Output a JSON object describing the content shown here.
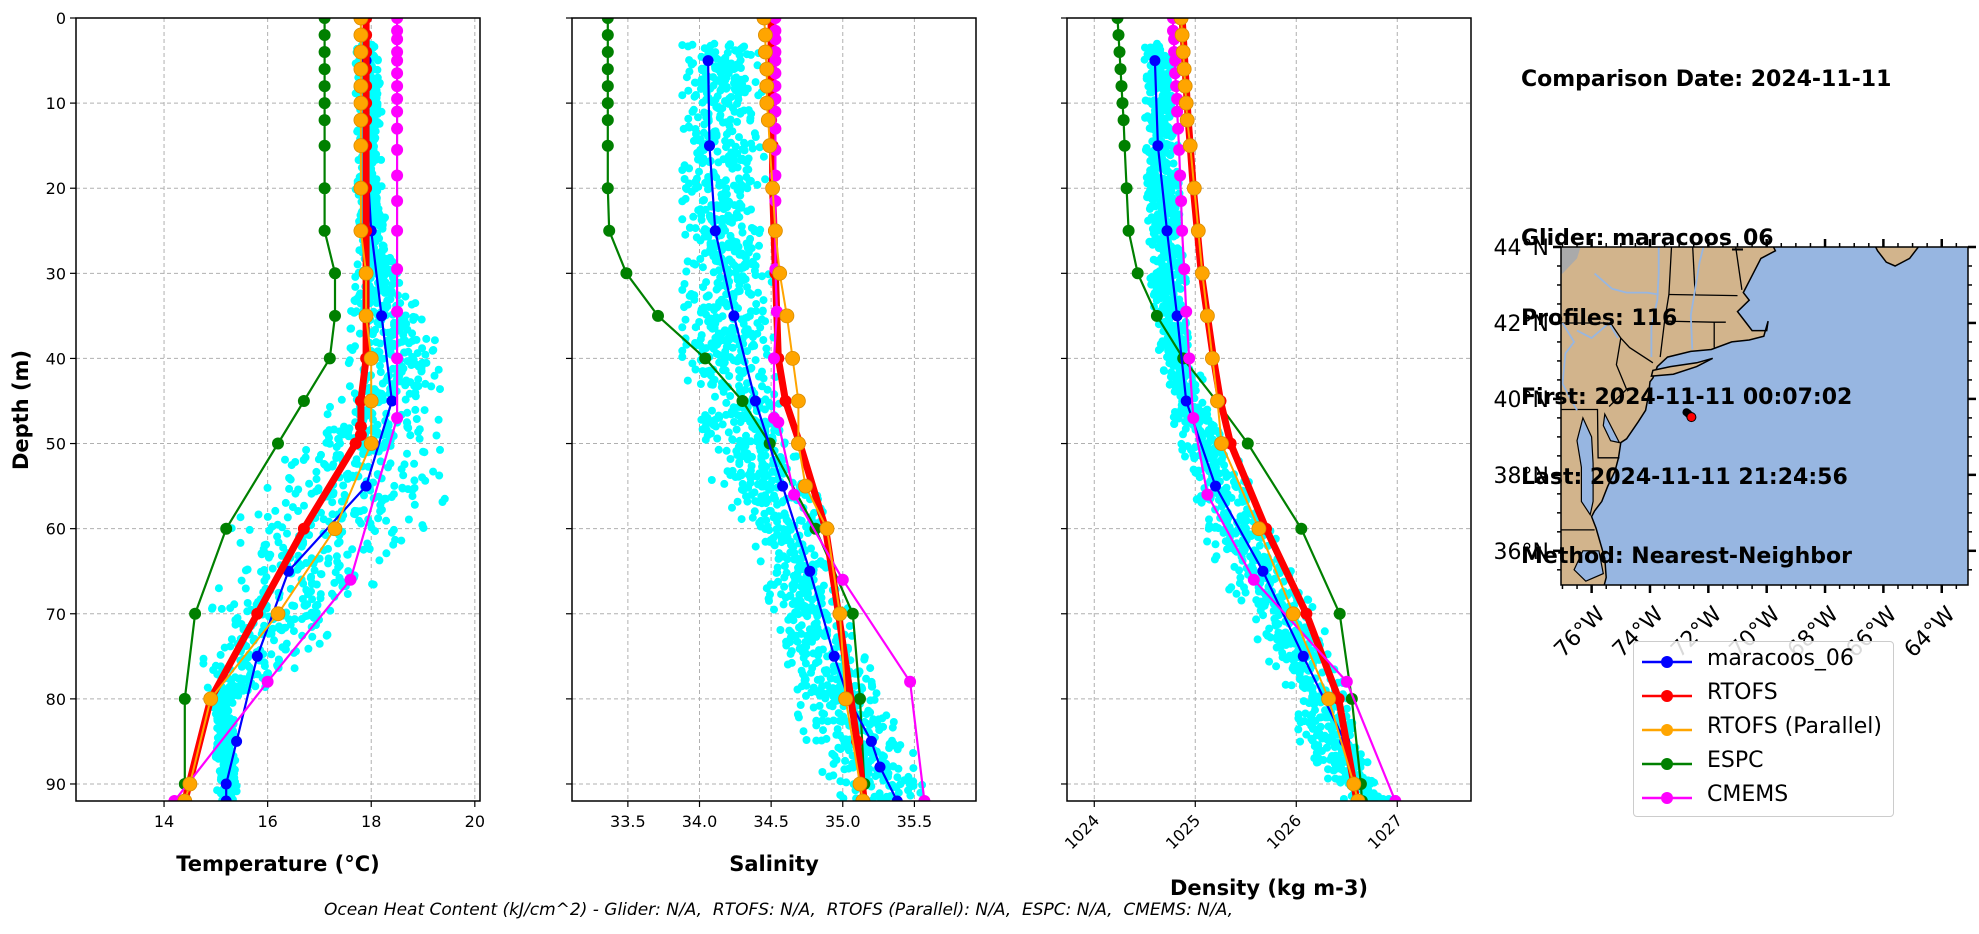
{
  "info": {
    "lines": [
      "Comparison Date: 2024-11-11",
      "",
      "Glider: maracoos_06",
      "Profiles: 116",
      "First: 2024-11-11 00:07:02",
      "Last: 2024-11-11 21:24:56",
      "Method: Nearest-Neighbor"
    ]
  },
  "footer": "Ocean Heat Content (kJ/cm^2) - Glider: N/A,  RTOFS: N/A,  RTOFS (Parallel): N/A,  ESPC: N/A,  CMEMS: N/A,",
  "legend": [
    {
      "name": "maracoos_06",
      "color": "#0000ff"
    },
    {
      "name": "RTOFS",
      "color": "#ff0000"
    },
    {
      "name": "RTOFS (Parallel)",
      "color": "#ffa500"
    },
    {
      "name": "ESPC",
      "color": "#008000"
    },
    {
      "name": "CMEMS",
      "color": "#ff00ff"
    }
  ],
  "colors": {
    "glider_scatter": "#00ffff",
    "land": "#d2b48c",
    "ocean": "#97b6e1",
    "rivers": "#97b6e1",
    "grid": "#b0b0b0"
  },
  "chart_data": [
    {
      "type": "line",
      "title": "",
      "xlabel": "Temperature (°C)",
      "ylabel": "Depth (m)",
      "xlim": [
        12.3,
        20.1
      ],
      "ylim": [
        92,
        0
      ],
      "xticks": [
        14,
        16,
        18,
        20
      ],
      "xtick_labels": [
        "14",
        "16",
        "18",
        "20"
      ],
      "yticks": [
        0,
        10,
        20,
        30,
        40,
        50,
        60,
        70,
        80,
        90
      ],
      "ytick_labels": [
        "0",
        "10",
        "20",
        "30",
        "40",
        "50",
        "60",
        "70",
        "80",
        "90"
      ],
      "grid": true,
      "scatter_envelope": {
        "name": "maracoos_06 profiles",
        "depth": [
          3,
          10,
          20,
          30,
          35,
          40,
          45,
          50,
          55,
          60,
          65,
          70,
          75,
          78,
          80,
          85,
          90,
          92
        ],
        "min": [
          17.7,
          17.7,
          17.7,
          17.7,
          17.6,
          17.6,
          17.3,
          16.6,
          15.9,
          15.3,
          14.9,
          14.7,
          14.7,
          14.8,
          14.9,
          15.0,
          15.0,
          15.0
        ],
        "max": [
          18.1,
          18.2,
          18.2,
          18.5,
          19.0,
          19.4,
          19.3,
          19.3,
          19.6,
          19.0,
          18.3,
          17.5,
          16.8,
          16.2,
          15.4,
          15.4,
          15.4,
          15.4
        ]
      },
      "series": [
        {
          "name": "maracoos_06",
          "x": [
            17.9,
            17.9,
            18.0,
            18.2,
            18.4,
            17.9,
            16.4,
            15.8,
            15.4,
            15.2,
            15.2
          ],
          "depth": [
            5,
            15,
            25,
            35,
            45,
            55,
            65,
            75,
            85,
            90,
            92
          ]
        },
        {
          "name": "RTOFS",
          "x": [
            17.9,
            17.9,
            17.9,
            17.9,
            17.9,
            17.9,
            17.9,
            17.9,
            17.9,
            17.9,
            17.9,
            17.9,
            17.9,
            17.8,
            17.8,
            17.8,
            17.7,
            16.7,
            15.8,
            14.9,
            14.4
          ],
          "depth": [
            0,
            2,
            4,
            6,
            8,
            10,
            12,
            15,
            20,
            25,
            30,
            35,
            40,
            45,
            48,
            49,
            50,
            60,
            70,
            80,
            92
          ]
        },
        {
          "name": "RTOFS (Parallel)",
          "x": [
            17.8,
            17.8,
            17.8,
            17.8,
            17.8,
            17.8,
            17.8,
            17.8,
            17.8,
            17.8,
            17.9,
            17.9,
            18.0,
            18.0,
            18.0,
            17.3,
            16.2,
            14.9,
            14.5,
            14.4
          ],
          "depth": [
            0,
            2,
            4,
            6,
            8,
            10,
            12,
            15,
            20,
            25,
            30,
            35,
            40,
            45,
            50,
            60,
            70,
            80,
            90,
            92
          ]
        },
        {
          "name": "ESPC",
          "x": [
            17.1,
            17.1,
            17.1,
            17.1,
            17.1,
            17.1,
            17.1,
            17.1,
            17.1,
            17.1,
            17.3,
            17.3,
            17.2,
            16.7,
            16.2,
            15.2,
            14.6,
            14.4,
            14.4,
            14.4
          ],
          "depth": [
            0,
            2,
            4,
            6,
            8,
            10,
            12,
            15,
            20,
            25,
            30,
            35,
            40,
            45,
            50,
            60,
            70,
            80,
            90,
            92
          ]
        },
        {
          "name": "CMEMS",
          "x": [
            18.5,
            18.5,
            18.5,
            18.5,
            18.5,
            18.5,
            18.5,
            18.5,
            18.5,
            18.5,
            18.5,
            18.5,
            18.5,
            18.5,
            18.5,
            18.5,
            18.5,
            18.5,
            17.6,
            16.0,
            14.2
          ],
          "depth": [
            0,
            1.5,
            2.5,
            4,
            5,
            6.5,
            8,
            9.5,
            11,
            13,
            15.5,
            18.5,
            21.5,
            25,
            29.5,
            34.5,
            40,
            47,
            66,
            78,
            92
          ]
        }
      ]
    },
    {
      "type": "line",
      "title": "",
      "xlabel": "Salinity",
      "ylabel": "",
      "xlim": [
        33.11,
        35.93
      ],
      "ylim": [
        92,
        0
      ],
      "xticks": [
        33.5,
        34.0,
        34.5,
        35.0,
        35.5
      ],
      "xtick_labels": [
        "33.5",
        "34.0",
        "34.5",
        "35.0",
        "35.5"
      ],
      "yticks": [
        0,
        10,
        20,
        30,
        40,
        50,
        60,
        70,
        80,
        90
      ],
      "grid": true,
      "scatter_envelope": {
        "name": "maracoos_06 profiles",
        "depth": [
          3,
          10,
          20,
          30,
          40,
          45,
          50,
          55,
          60,
          65,
          70,
          75,
          80,
          85,
          90,
          92
        ],
        "min": [
          33.88,
          33.88,
          33.88,
          33.88,
          33.88,
          33.9,
          34.0,
          34.1,
          34.35,
          34.45,
          34.5,
          34.6,
          34.65,
          34.75,
          34.9,
          35.0
        ],
        "max": [
          34.44,
          34.44,
          34.46,
          34.5,
          34.54,
          34.6,
          34.7,
          34.8,
          34.9,
          34.95,
          35.05,
          35.15,
          35.3,
          35.45,
          35.6,
          35.7
        ]
      },
      "series": [
        {
          "name": "maracoos_06",
          "x": [
            34.06,
            34.07,
            34.11,
            34.24,
            34.39,
            34.58,
            34.77,
            34.94,
            35.04,
            35.2,
            35.26,
            35.38
          ],
          "depth": [
            5,
            15,
            25,
            35,
            45,
            55,
            65,
            75,
            80,
            85,
            88,
            92
          ]
        },
        {
          "name": "RTOFS",
          "x": [
            34.5,
            34.5,
            34.5,
            34.5,
            34.5,
            34.5,
            34.5,
            34.51,
            34.51,
            34.52,
            34.53,
            34.55,
            34.6,
            34.7,
            34.88,
            34.97,
            35.1,
            35.15
          ],
          "depth": [
            0,
            2,
            4,
            6,
            8,
            10,
            12,
            15,
            20,
            25,
            30,
            40,
            45,
            50,
            60,
            70,
            85,
            92
          ]
        },
        {
          "name": "RTOFS (Parallel)",
          "x": [
            34.45,
            34.46,
            34.46,
            34.47,
            34.47,
            34.47,
            34.48,
            34.49,
            34.51,
            34.53,
            34.56,
            34.61,
            34.65,
            34.69,
            34.69,
            34.74,
            34.89,
            34.98,
            35.02,
            35.12,
            35.14
          ],
          "depth": [
            0,
            2,
            4,
            6,
            8,
            10,
            12,
            15,
            20,
            25,
            30,
            35,
            40,
            45,
            50,
            55,
            60,
            70,
            80,
            90,
            92
          ]
        },
        {
          "name": "ESPC",
          "x": [
            33.36,
            33.36,
            33.36,
            33.36,
            33.36,
            33.36,
            33.36,
            33.36,
            33.36,
            33.37,
            33.49,
            33.71,
            34.04,
            34.3,
            34.49,
            34.81,
            35.07,
            35.12,
            35.15
          ],
          "depth": [
            0,
            2,
            4,
            6,
            8,
            10,
            12,
            15,
            20,
            25,
            30,
            35,
            40,
            45,
            50,
            60,
            70,
            80,
            90
          ]
        },
        {
          "name": "CMEMS",
          "x": [
            34.53,
            34.53,
            34.53,
            34.53,
            34.53,
            34.53,
            34.53,
            34.53,
            34.53,
            34.53,
            34.53,
            34.53,
            34.53,
            34.53,
            34.53,
            34.54,
            34.52,
            34.52,
            34.55,
            34.66,
            35.0,
            35.47,
            35.57
          ],
          "depth": [
            0,
            1.5,
            2.5,
            4,
            5,
            6.5,
            8,
            9.5,
            11,
            13,
            15.5,
            18.5,
            21.5,
            25,
            29.5,
            34.5,
            40,
            47,
            47.5,
            56,
            66,
            78,
            92
          ]
        }
      ]
    },
    {
      "type": "line",
      "title": "",
      "xlabel": "Density (kg m-3)",
      "ylabel": "",
      "xlim": [
        1023.73,
        1027.73
      ],
      "ylim": [
        92,
        0
      ],
      "xticks": [
        1024,
        1025,
        1026,
        1027
      ],
      "xtick_labels": [
        "1024",
        "1025",
        "1026",
        "1027"
      ],
      "yticks": [
        0,
        10,
        20,
        30,
        40,
        50,
        60,
        70,
        80,
        90
      ],
      "grid": true,
      "scatter_envelope": {
        "name": "maracoos_06 profiles",
        "depth": [
          3,
          10,
          20,
          30,
          40,
          45,
          50,
          55,
          60,
          65,
          70,
          75,
          80,
          85,
          90,
          92
        ],
        "min": [
          1024.48,
          1024.5,
          1024.52,
          1024.55,
          1024.65,
          1024.72,
          1024.85,
          1025.0,
          1025.05,
          1025.25,
          1025.45,
          1025.7,
          1025.95,
          1026.0,
          1026.35,
          1026.45
        ],
        "max": [
          1024.78,
          1024.8,
          1024.85,
          1024.9,
          1025.0,
          1025.15,
          1025.35,
          1025.55,
          1025.75,
          1025.95,
          1026.2,
          1026.4,
          1026.5,
          1026.65,
          1026.85,
          1026.95
        ]
      },
      "series": [
        {
          "name": "maracoos_06",
          "x": [
            1024.6,
            1024.63,
            1024.72,
            1024.82,
            1024.91,
            1025.2,
            1025.67,
            1026.07,
            1026.48,
            1026.62
          ],
          "depth": [
            5,
            15,
            25,
            35,
            45,
            55,
            65,
            75,
            85,
            92
          ]
        },
        {
          "name": "RTOFS",
          "x": [
            1024.87,
            1024.88,
            1024.89,
            1024.9,
            1024.91,
            1024.92,
            1024.93,
            1024.95,
            1024.98,
            1025.02,
            1025.06,
            1025.12,
            1025.18,
            1025.25,
            1025.35,
            1025.7,
            1026.1,
            1026.42,
            1026.6
          ],
          "depth": [
            0,
            2,
            4,
            6,
            8,
            10,
            12,
            15,
            20,
            25,
            30,
            35,
            40,
            45,
            50,
            60,
            70,
            80,
            92
          ]
        },
        {
          "name": "RTOFS (Parallel)",
          "x": [
            1024.86,
            1024.87,
            1024.88,
            1024.89,
            1024.9,
            1024.91,
            1024.92,
            1024.95,
            1024.99,
            1025.03,
            1025.07,
            1025.12,
            1025.17,
            1025.22,
            1025.26,
            1025.63,
            1025.97,
            1026.32,
            1026.57,
            1026.61
          ],
          "depth": [
            0,
            2,
            4,
            6,
            8,
            10,
            12,
            15,
            20,
            25,
            30,
            35,
            40,
            45,
            50,
            60,
            70,
            80,
            90,
            92
          ]
        },
        {
          "name": "ESPC",
          "x": [
            1024.23,
            1024.24,
            1024.25,
            1024.26,
            1024.27,
            1024.28,
            1024.29,
            1024.3,
            1024.32,
            1024.34,
            1024.43,
            1024.62,
            1024.88,
            1025.21,
            1025.52,
            1026.05,
            1026.43,
            1026.55,
            1026.64,
            1026.65
          ],
          "depth": [
            0,
            2,
            4,
            6,
            8,
            10,
            12,
            15,
            20,
            25,
            30,
            35,
            40,
            45,
            50,
            60,
            70,
            80,
            90,
            92
          ]
        },
        {
          "name": "CMEMS",
          "x": [
            1024.78,
            1024.78,
            1024.79,
            1024.79,
            1024.8,
            1024.8,
            1024.81,
            1024.82,
            1024.82,
            1024.83,
            1024.84,
            1024.85,
            1024.86,
            1024.87,
            1024.89,
            1024.91,
            1024.94,
            1024.98,
            1025.12,
            1025.58,
            1026.5,
            1026.98
          ],
          "depth": [
            0,
            1.5,
            2.5,
            4,
            5,
            6.5,
            8,
            9.5,
            11,
            13,
            15.5,
            18.5,
            21.5,
            25,
            29.5,
            34.5,
            40,
            47,
            56,
            66,
            78,
            92
          ]
        }
      ]
    },
    {
      "type": "scatter",
      "title": "",
      "xlabel": "",
      "ylabel": "",
      "xlim": [
        -77.05,
        -63.1
      ],
      "ylim": [
        35.1,
        44.0
      ],
      "xticks": [
        -76,
        -74,
        -72,
        -70,
        -68,
        -66,
        -64
      ],
      "xtick_labels": [
        "76°W",
        "74°W",
        "72°W",
        "70°W",
        "68°W",
        "66°W",
        "64°W"
      ],
      "yticks": [
        36,
        38,
        40,
        42,
        44
      ],
      "ytick_labels": [
        "36°N",
        "38°N",
        "40°N",
        "42°N",
        "44°N"
      ],
      "grid": false,
      "glider_track": {
        "lon": [
          -72.75,
          -72.7,
          -72.65,
          -72.6
        ],
        "lat": [
          39.65,
          39.62,
          39.58,
          39.55
        ]
      },
      "latest_position": {
        "lon": -72.58,
        "lat": 39.52
      }
    }
  ]
}
